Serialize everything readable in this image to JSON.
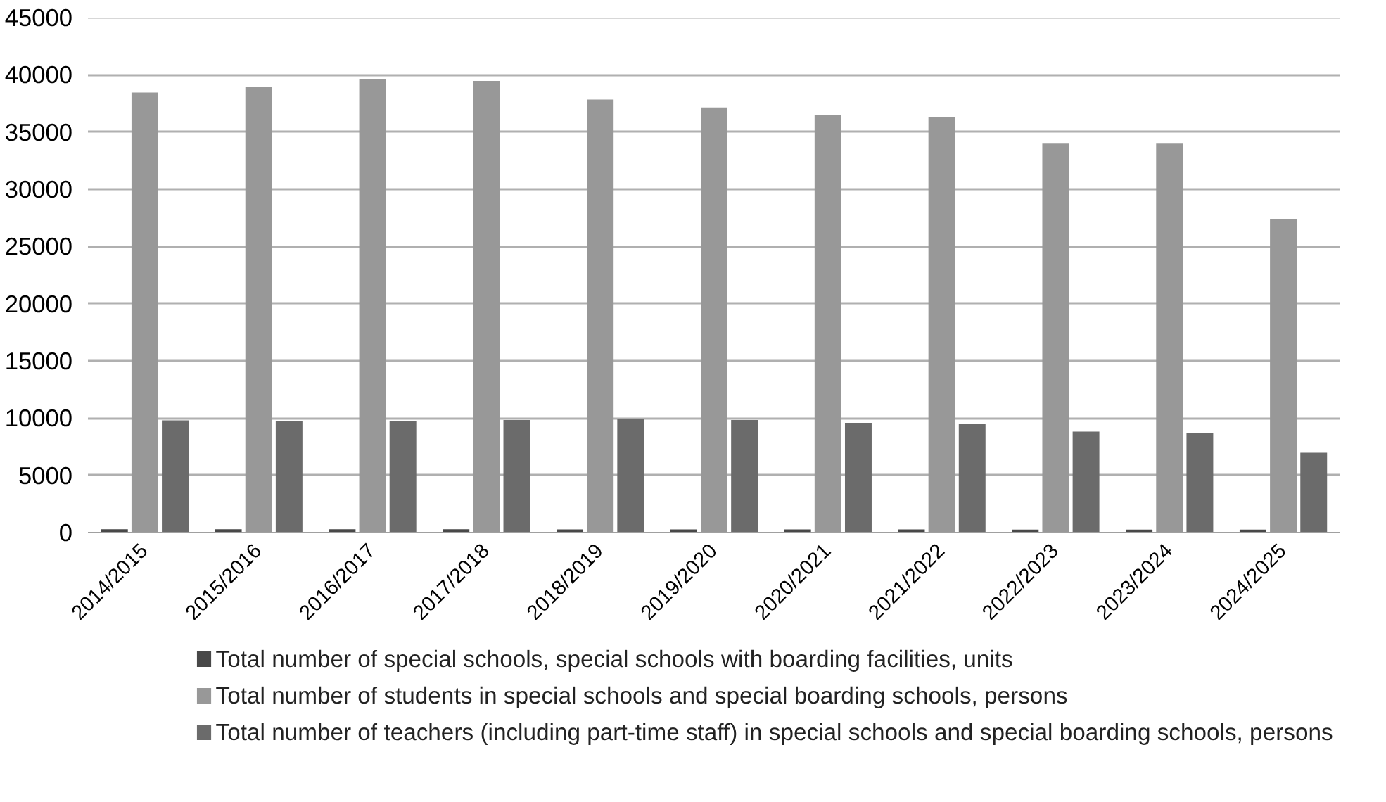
{
  "chart_data": {
    "type": "bar",
    "categories": [
      "2014/2015",
      "2015/2016",
      "2016/2017",
      "2017/2018",
      "2018/2019",
      "2019/2020",
      "2020/2021",
      "2021/2022",
      "2022/2023",
      "2023/2024",
      "2024/2025"
    ],
    "series": [
      {
        "name": "Total number of special schools, special schools with boarding facilities, units",
        "color": "#484848",
        "values": [
          290,
          290,
          290,
          290,
          280,
          280,
          270,
          270,
          260,
          260,
          260
        ]
      },
      {
        "name": "Total number of students in special schools and special boarding schools, persons",
        "color": "#989898",
        "values": [
          38450,
          38980,
          39630,
          39470,
          37840,
          37140,
          36490,
          36330,
          34040,
          34040,
          27350
        ]
      },
      {
        "name": "Total number of teachers (including part-time staff) in special schools and special boarding schools,  persons",
        "color": "#6b6b6b",
        "values": [
          9800,
          9710,
          9750,
          9840,
          9920,
          9840,
          9590,
          9510,
          8820,
          8690,
          6980
        ]
      }
    ],
    "ylim": [
      0,
      45000
    ],
    "yticks": [
      0,
      5000,
      10000,
      15000,
      20000,
      25000,
      30000,
      35000,
      40000,
      45000
    ],
    "grid": "y",
    "legend": "bottom"
  }
}
